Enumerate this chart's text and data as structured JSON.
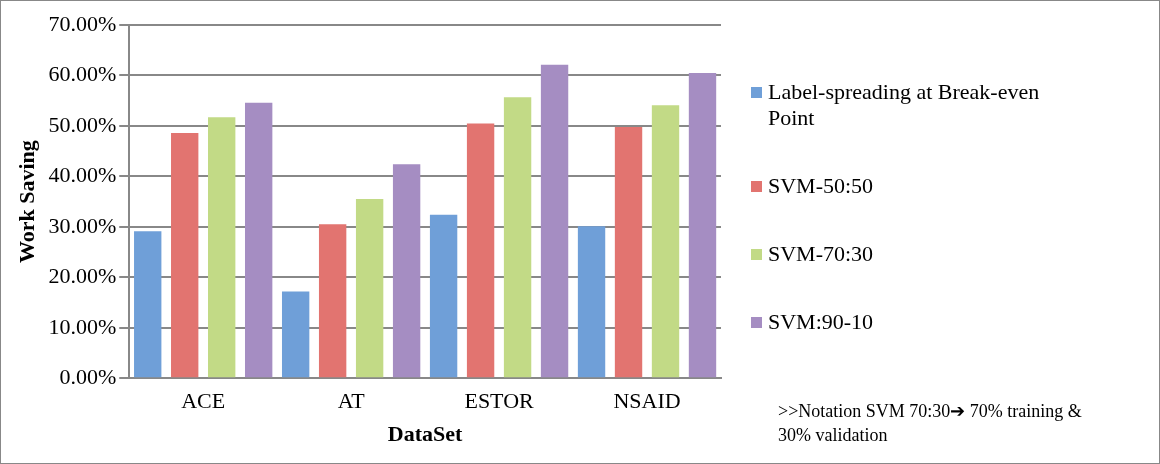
{
  "chart_data": {
    "type": "bar",
    "xlabel": "DataSet",
    "ylabel": "Work Saving",
    "categories": [
      "ACE",
      "AT",
      "ESTOR",
      "NSAID"
    ],
    "series": [
      {
        "name": "Label-spreading at Break-even Point",
        "color": "#6f9fd8",
        "values": [
          29.1,
          17.2,
          32.4,
          30.1
        ]
      },
      {
        "name": "SVM-50:50",
        "color": "#e27470",
        "values": [
          48.6,
          30.5,
          50.5,
          49.8
        ]
      },
      {
        "name": "SVM-70:30",
        "color": "#c2da86",
        "values": [
          51.7,
          35.5,
          55.7,
          54.1
        ]
      },
      {
        "name": "SVM:90-10",
        "color": "#a58dc2",
        "values": [
          54.6,
          42.4,
          62.1,
          60.5
        ]
      }
    ],
    "ylim": [
      0,
      70
    ],
    "yticks": [
      {
        "value": 0,
        "label": "0.00%"
      },
      {
        "value": 10,
        "label": "10.00%"
      },
      {
        "value": 20,
        "label": "20.00%"
      },
      {
        "value": 30,
        "label": "30.00%"
      },
      {
        "value": 40,
        "label": "40.00%"
      },
      {
        "value": 50,
        "label": "50.00%"
      },
      {
        "value": 60,
        "label": "60.00%"
      },
      {
        "value": 70,
        "label": "70.00%"
      }
    ],
    "grid": "y",
    "legend": "right",
    "annotations": [
      ">>Notation SVM 70:30➔ 70% training & 30% validation"
    ]
  }
}
